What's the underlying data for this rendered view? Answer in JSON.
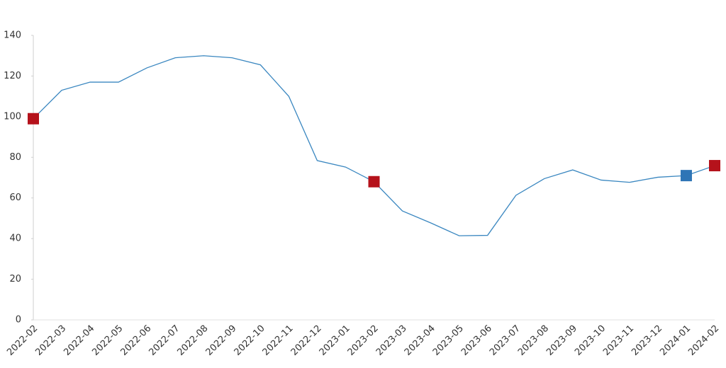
{
  "chart_data": {
    "type": "line",
    "categories": [
      "2022-02",
      "2022-03",
      "2022-04",
      "2022-05",
      "2022-06",
      "2022-07",
      "2022-08",
      "2022-09",
      "2022-10",
      "2022-11",
      "2022-12",
      "2023-01",
      "2023-02",
      "2023-03",
      "2023-04",
      "2023-05",
      "2023-06",
      "2023-07",
      "2023-08",
      "2023-09",
      "2023-10",
      "2023-11",
      "2023-12",
      "2024-01",
      "2024-02"
    ],
    "series": [
      {
        "color": "#3a87c0",
        "values": [
          99,
          113,
          117,
          117,
          124,
          129,
          130,
          129,
          125.5,
          110,
          78.4,
          75.2,
          68,
          53.6,
          47.7,
          41.4,
          41.6,
          61.3,
          69.5,
          73.8,
          68.8,
          67.7,
          70.2,
          71,
          75.9
        ],
        "marker_colors": [
          "#b5121b",
          null,
          null,
          null,
          null,
          null,
          null,
          null,
          null,
          null,
          null,
          null,
          "#b5121b",
          null,
          null,
          null,
          null,
          null,
          null,
          null,
          null,
          null,
          null,
          "#2e75b6",
          "#b5121b"
        ]
      }
    ],
    "ylim": [
      0,
      140
    ],
    "yticks": [
      0,
      20,
      40,
      60,
      80,
      100,
      120,
      140
    ],
    "grid": false
  }
}
